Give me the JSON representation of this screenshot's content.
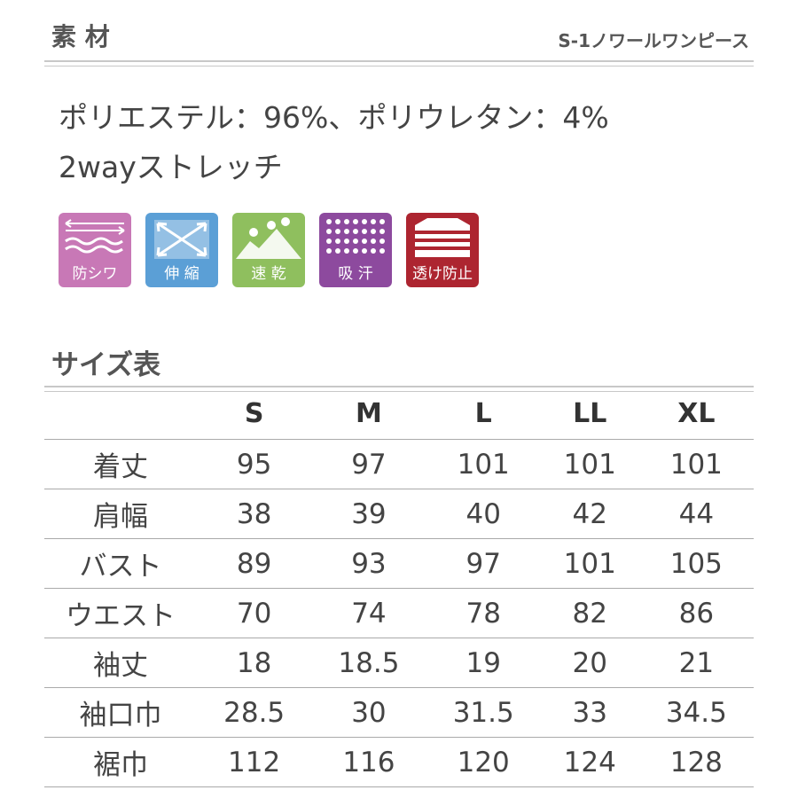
{
  "header": {
    "title": "素 材",
    "product": "S-1ノワールワンピース"
  },
  "material": {
    "lines": [
      "ポリエステル：96%、ポリウレタン：4%",
      "2wayストレッチ"
    ]
  },
  "features": [
    {
      "label": "防シワ",
      "color": "#c878b6"
    },
    {
      "label": "伸 縮",
      "color": "#5b9fd6"
    },
    {
      "label": "速 乾",
      "color": "#8fbf5e"
    },
    {
      "label": "吸 汗",
      "color": "#8d4a9e"
    },
    {
      "label": "透け防止",
      "color": "#ad2530"
    }
  ],
  "size_table": {
    "title": "サイズ表",
    "columns": [
      "S",
      "M",
      "L",
      "LL",
      "XL"
    ],
    "rows": [
      {
        "label": "着丈",
        "values": [
          95,
          97,
          101,
          101,
          101
        ]
      },
      {
        "label": "肩幅",
        "values": [
          38,
          39,
          40,
          42,
          44
        ]
      },
      {
        "label": "バスト",
        "values": [
          89,
          93,
          97,
          101,
          105
        ]
      },
      {
        "label": "ウエスト",
        "values": [
          70,
          74,
          78,
          82,
          86
        ]
      },
      {
        "label": "袖丈",
        "values": [
          18,
          18.5,
          19,
          20,
          21
        ]
      },
      {
        "label": "袖口巾",
        "values": [
          28.5,
          30,
          31.5,
          33,
          34.5
        ]
      },
      {
        "label": "裾巾",
        "values": [
          112,
          116,
          120,
          124,
          128
        ]
      }
    ]
  }
}
